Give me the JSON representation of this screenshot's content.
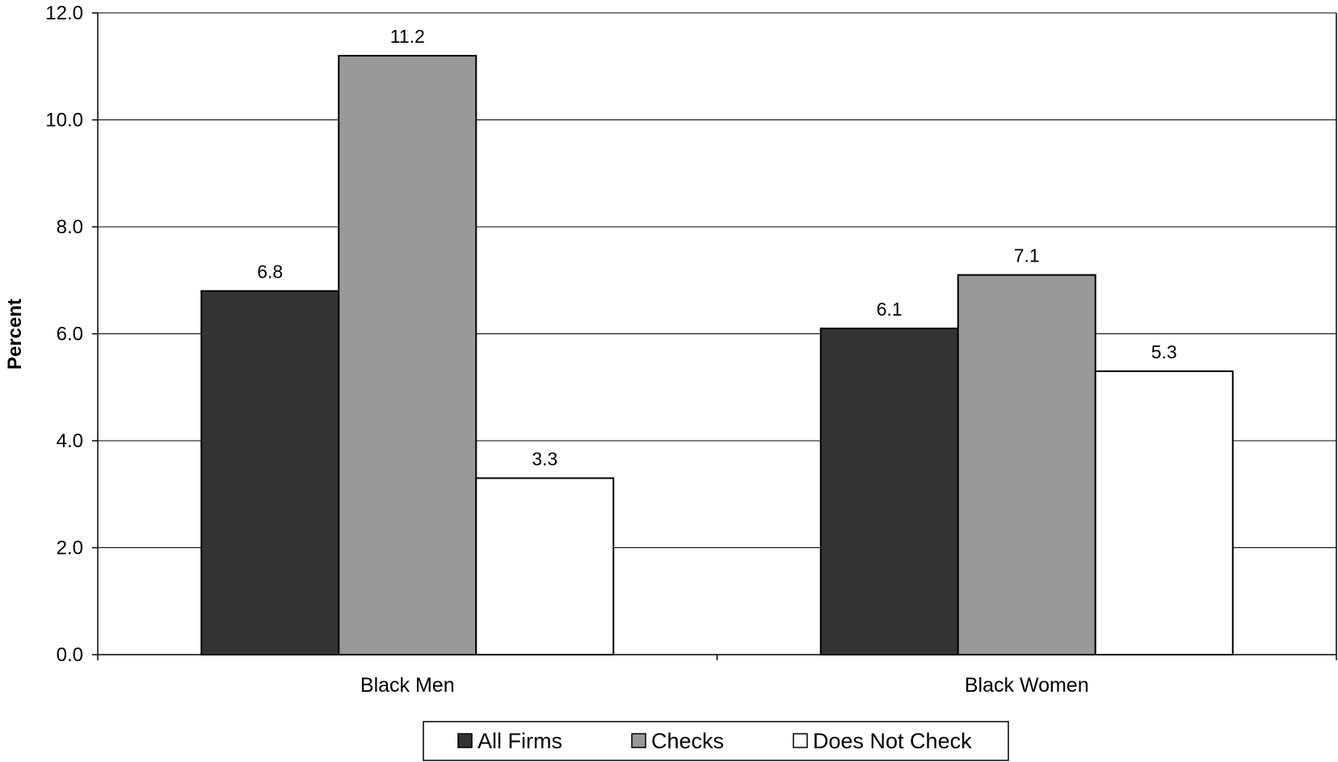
{
  "chart_data": {
    "type": "bar",
    "categories": [
      "Black Men",
      "Black Women"
    ],
    "series": [
      {
        "name": "All Firms",
        "values": [
          6.8,
          6.1
        ],
        "color": "#333333"
      },
      {
        "name": "Checks",
        "values": [
          11.2,
          7.1
        ],
        "color": "#999999"
      },
      {
        "name": "Does Not Check",
        "values": [
          3.3,
          5.3
        ],
        "color": "#ffffff"
      }
    ],
    "data_labels": [
      [
        "6.8",
        "6.1"
      ],
      [
        "11.2",
        "7.1"
      ],
      [
        "3.3",
        "5.3"
      ]
    ],
    "ylabel": "Percent",
    "xlabel": "",
    "ylim": [
      0,
      12
    ],
    "yticks": [
      "0.0",
      "2.0",
      "4.0",
      "6.0",
      "8.0",
      "10.0",
      "12.0"
    ],
    "grid": true,
    "legend_position": "bottom"
  }
}
